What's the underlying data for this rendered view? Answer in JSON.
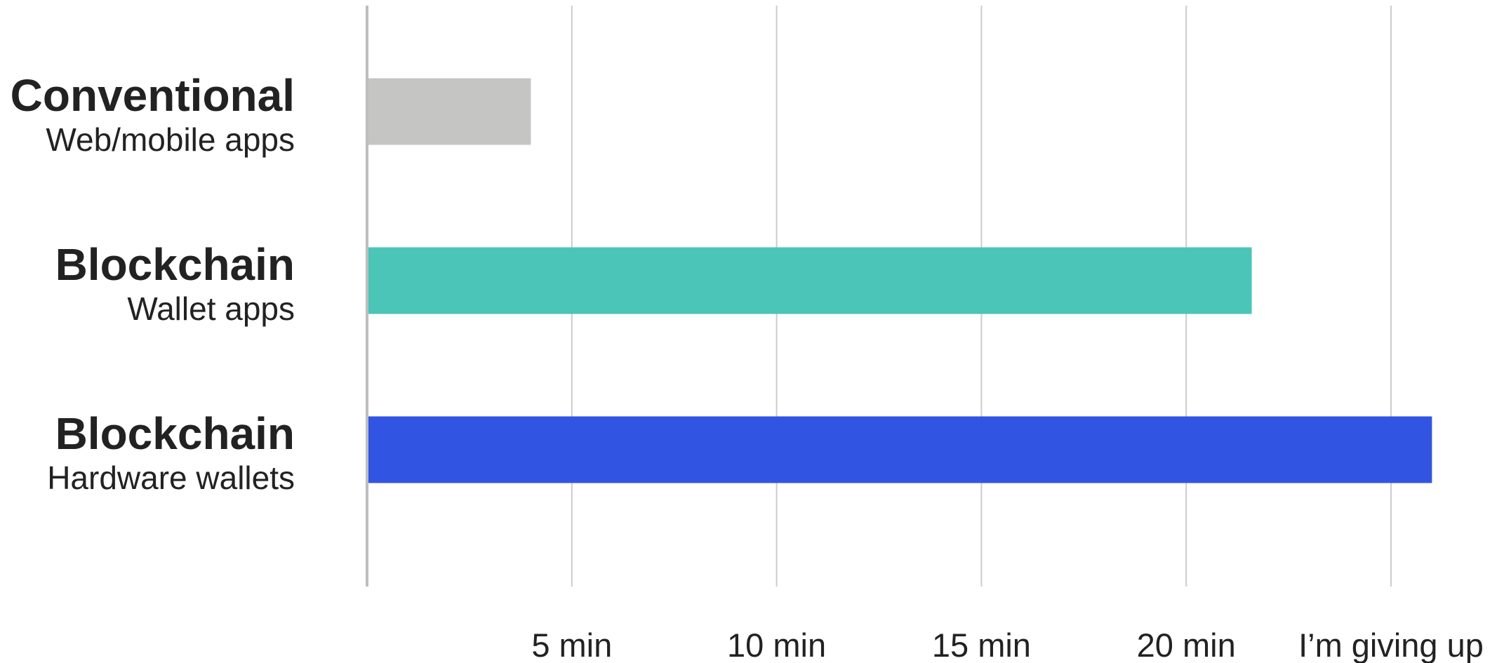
{
  "chart_data": {
    "type": "bar",
    "orientation": "horizontal",
    "title": "",
    "xlabel": "",
    "ylabel": "",
    "grid": true,
    "xlim": [
      0,
      26
    ],
    "xticks": [
      {
        "value": 5,
        "label": "5 min"
      },
      {
        "value": 10,
        "label": "10 min"
      },
      {
        "value": 15,
        "label": "15 min"
      },
      {
        "value": 20,
        "label": "20 min"
      },
      {
        "value": 25,
        "label": "I’m giving up"
      }
    ],
    "categories": [
      {
        "title": "Conventional",
        "subtitle": "Web/mobile apps",
        "value": 4,
        "color": "#c5c6c4"
      },
      {
        "title": "Blockchain",
        "subtitle": "Wallet apps",
        "value": 21.6,
        "color": "#4bc5b7"
      },
      {
        "title": "Blockchain",
        "subtitle": "Hardware wallets",
        "value": 26,
        "color": "#3254e3"
      }
    ],
    "colors": {
      "gridline": "#cccccc",
      "axis": "#bdbdbd",
      "text": "#222222"
    }
  }
}
